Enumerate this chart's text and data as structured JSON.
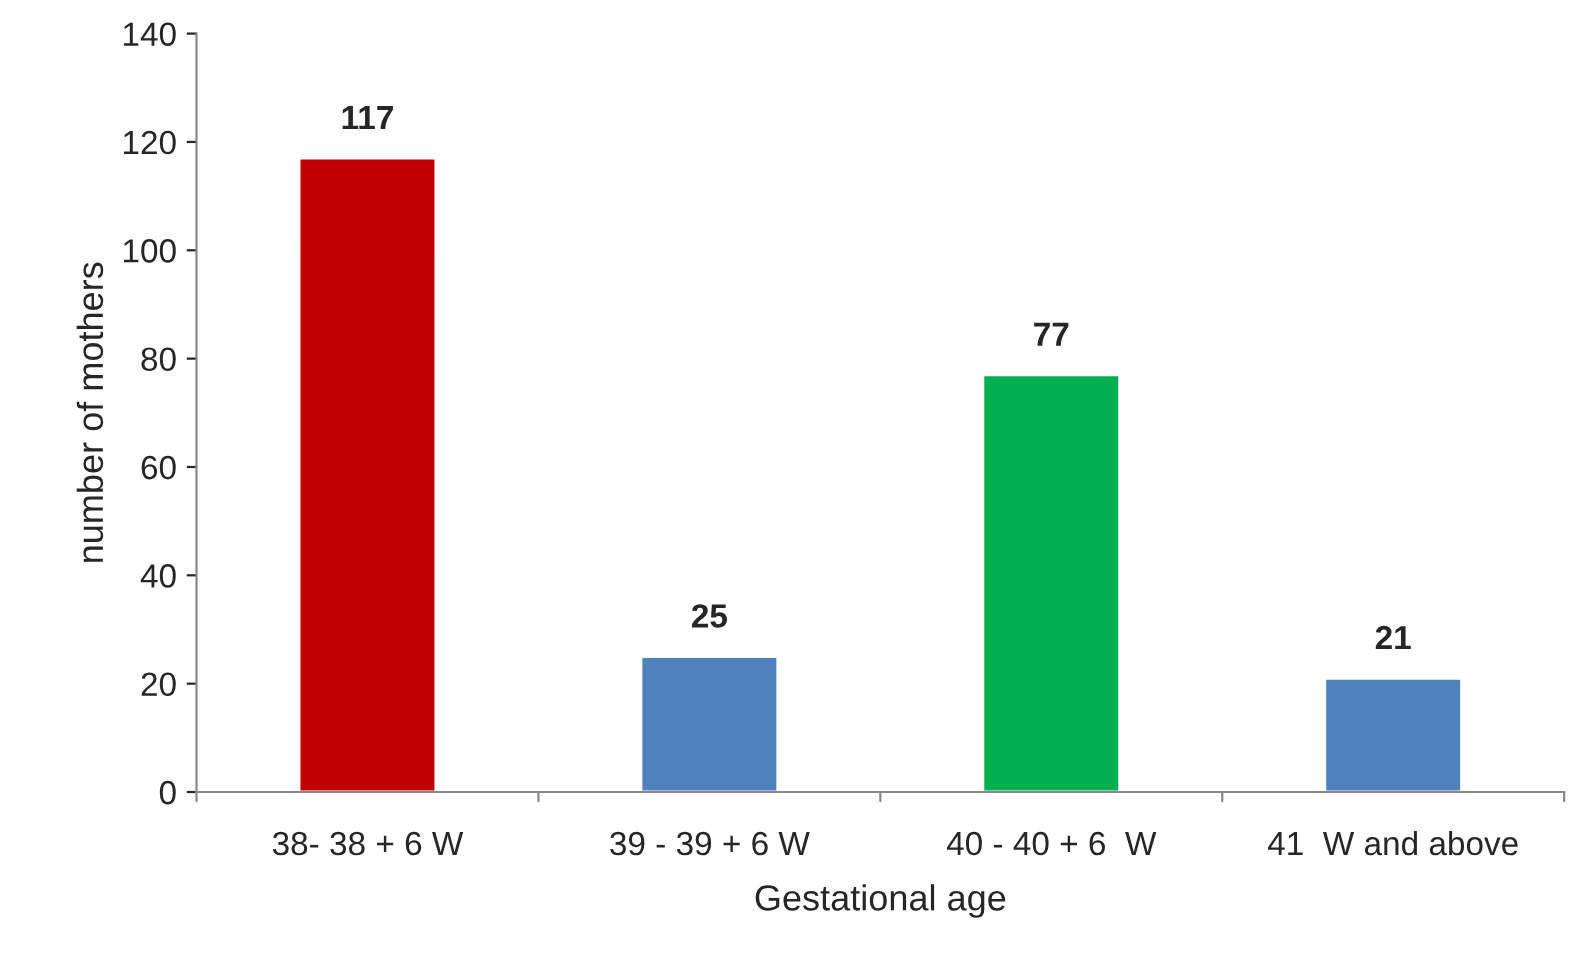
{
  "chart_data": {
    "type": "bar",
    "xlabel": "Gestational age",
    "ylabel": "number of mothers",
    "categories": [
      "38- 38 + 6 W",
      "39 - 39 + 6 W",
      "40 - 40 + 6  W",
      "41  W and above"
    ],
    "values": [
      117,
      25,
      77,
      21
    ],
    "colors": [
      "#c00000",
      "#4f81bd",
      "#00b050",
      "#4f81bd"
    ],
    "ylim": [
      0,
      140
    ],
    "yticks": [
      0,
      20,
      40,
      60,
      80,
      100,
      120,
      140
    ],
    "grid": false,
    "data_labels": true
  }
}
